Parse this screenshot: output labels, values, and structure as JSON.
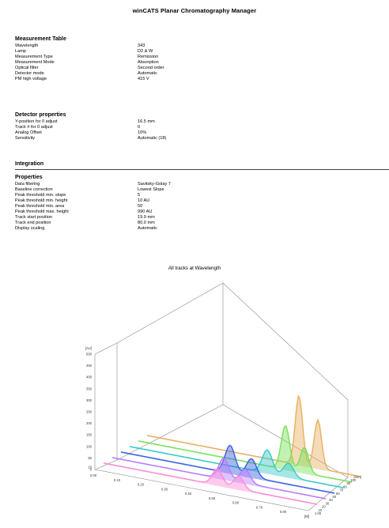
{
  "document": {
    "title": "winCATS Planar Chromatography Manager"
  },
  "measurement_table": {
    "heading": "Measurement Table",
    "rows": [
      {
        "label": "Wavelength",
        "value": "343"
      },
      {
        "label": "Lamp",
        "value": "D2 & W"
      },
      {
        "label": "Measurement Type",
        "value": "Remission"
      },
      {
        "label": "Measurement Mode",
        "value": "Absorption"
      },
      {
        "label": "Optical filter",
        "value": "Second order"
      },
      {
        "label": "Detector mode",
        "value": "Automatic"
      },
      {
        "label": "PM high voltage",
        "value": "415 V"
      }
    ]
  },
  "detector_properties": {
    "heading": "Detector properties",
    "rows": [
      {
        "label": "Y-position for 0 adjust",
        "value": "16.5 mm"
      },
      {
        "label": "Track # for 0 adjust",
        "value": "0"
      },
      {
        "label": "Analog Offset",
        "value": "10%"
      },
      {
        "label": "Sensitivity",
        "value": "Automatic (18)"
      }
    ]
  },
  "integration": {
    "heading": "Integration"
  },
  "properties": {
    "heading": "Properties",
    "rows": [
      {
        "label": "Data filtering",
        "value": "Savitsky-Golay 7"
      },
      {
        "label": "Baseline correction",
        "value": "Lowest Slope"
      },
      {
        "label": "Peak threshold min. slope",
        "value": "5"
      },
      {
        "label": "Peak threshold min. height",
        "value": "10 AU"
      },
      {
        "label": "Peak threshold min. area",
        "value": "50"
      },
      {
        "label": "Peak threshold max. height",
        "value": "990 AU"
      },
      {
        "label": "Track start position",
        "value": "19.9 mm"
      },
      {
        "label": "Track end position",
        "value": "80.0 mm"
      },
      {
        "label": "Display scaling",
        "value": "Automatic"
      }
    ]
  },
  "chart_data": {
    "type": "line",
    "title": "All tracks at Wavelength",
    "y_unit": "[AU]",
    "y_ticks": [
      "0",
      "10",
      "50",
      "100",
      "150",
      "200",
      "250",
      "300",
      "350",
      "400",
      "450",
      "500"
    ],
    "ylim": [
      0,
      500
    ],
    "x_ticks": [
      "0.00",
      "0.10",
      "0.20",
      "0.30",
      "0.40",
      "0.50",
      "0.60",
      "0.70",
      "0.80",
      "[Rf]"
    ],
    "xlim": [
      0,
      0.9
    ],
    "track_ticks": [
      "1.00",
      "10",
      "20",
      "30",
      "40",
      "50",
      "60",
      "70",
      "80",
      "90",
      "100",
      "[mm]"
    ],
    "series": [
      {
        "color": "#ff8ad8",
        "peaks": [
          [
            0.48,
            70,
            0.03
          ],
          [
            0.57,
            55,
            0.03
          ]
        ]
      },
      {
        "color": "#b87cff",
        "peaks": [
          [
            0.47,
            90,
            0.03
          ],
          [
            0.56,
            60,
            0.03
          ]
        ]
      },
      {
        "color": "#3a60e0",
        "peaks": [
          [
            0.46,
            120,
            0.03
          ],
          [
            0.55,
            80,
            0.03
          ]
        ]
      },
      {
        "color": "#38c8c8",
        "peaks": [
          [
            0.58,
            100,
            0.03
          ],
          [
            0.67,
            60,
            0.03
          ]
        ]
      },
      {
        "color": "#78e05a",
        "peaks": [
          [
            0.62,
            190,
            0.025
          ],
          [
            0.7,
            110,
            0.025
          ]
        ]
      },
      {
        "color": "#e8b060",
        "peaks": [
          [
            0.64,
            300,
            0.022
          ],
          [
            0.72,
            210,
            0.022
          ]
        ]
      }
    ]
  }
}
